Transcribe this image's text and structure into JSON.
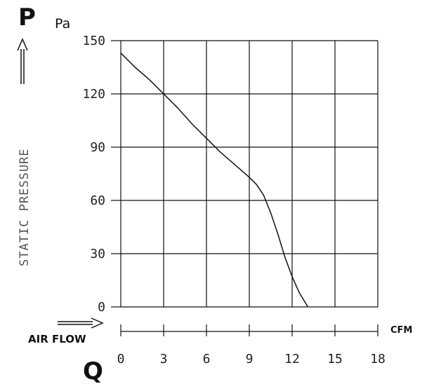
{
  "labels": {
    "p_symbol": "P",
    "p_unit": "Pa",
    "q_symbol": "Q",
    "y_axis_title": "STATIC PRESSURE",
    "x_axis_title": "AIR FLOW",
    "x_unit": "CFM"
  },
  "colors": {
    "line": "#111111",
    "grid": "#111111",
    "axis_text": "#222222"
  },
  "chart_data": {
    "type": "line",
    "title": "",
    "xlabel": "AIR FLOW",
    "ylabel": "STATIC PRESSURE",
    "x_unit": "CFM",
    "y_unit": "Pa",
    "xlim": [
      0,
      18
    ],
    "ylim": [
      0,
      150
    ],
    "x_ticks": [
      0,
      3,
      6,
      9,
      12,
      15,
      18
    ],
    "y_ticks": [
      0,
      30,
      60,
      90,
      120,
      150
    ],
    "grid": true,
    "series": [
      {
        "x": [
          0,
          1,
          2,
          3,
          4,
          5,
          6,
          7,
          8,
          9,
          9.5,
          10,
          10.5,
          11,
          11.5,
          12,
          12.5,
          13.1
        ],
        "y": [
          143,
          135,
          128,
          120,
          112,
          103,
          95,
          87,
          80,
          73,
          69,
          63,
          53,
          41,
          28,
          17,
          8,
          0
        ]
      }
    ]
  }
}
